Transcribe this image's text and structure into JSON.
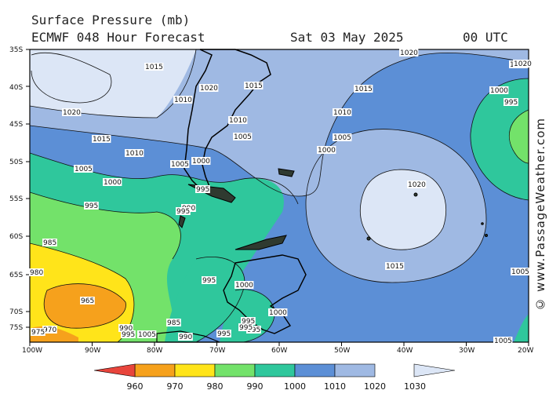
{
  "header": {
    "title": "Surface Pressure (mb)",
    "model": "ECMWF 048 Hour Forecast",
    "date": "Sat 03 May 2025",
    "time": "00 UTC"
  },
  "credit": "© www.PassageWeather.com",
  "map": {
    "lat_labels": [
      "35S",
      "40S",
      "45S",
      "50S",
      "55S",
      "60S",
      "65S",
      "70S",
      "75S"
    ],
    "lon_labels": [
      "100W",
      "90W",
      "80W",
      "70W",
      "60W",
      "50W",
      "40W",
      "30W",
      "20W"
    ],
    "isobar_labels": [
      "1020",
      "1015",
      "1020",
      "1020",
      "1010",
      "1015",
      "1015",
      "1010",
      "1010",
      "1005",
      "1000",
      "1005",
      "1010",
      "1015",
      "1005",
      "1000",
      "1005",
      "995",
      "1000",
      "995",
      "990",
      "995",
      "985",
      "980",
      "1020",
      "1015",
      "1000",
      "995",
      "1000",
      "995",
      "995",
      "965",
      "970",
      "975",
      "990",
      "985",
      "995",
      "990",
      "995",
      "995",
      "1005",
      "1000",
      "995",
      "1005",
      "1000",
      "1005",
      "1020"
    ]
  },
  "colorbar": {
    "labels": [
      "960",
      "970",
      "980",
      "990",
      "1000",
      "1010",
      "1020",
      "1030"
    ],
    "colors": [
      "#e8453c",
      "#f6a11c",
      "#ffe41a",
      "#73e26a",
      "#2fc79c",
      "#5c8fd6",
      "#9fb9e3",
      "#dce6f6"
    ]
  }
}
